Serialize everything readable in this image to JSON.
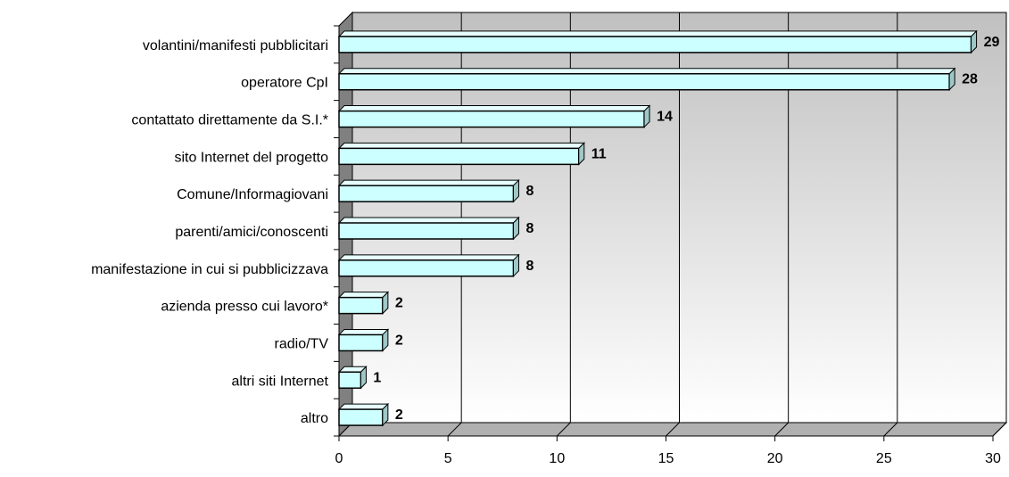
{
  "chart_data": {
    "type": "bar",
    "orientation": "horizontal",
    "categories": [
      "volantini/manifesti pubblicitari",
      "operatore CpI",
      "contattato direttamente da S.I.*",
      "sito Internet del progetto",
      "Comune/Informagiovani",
      "parenti/amici/conoscenti",
      "manifestazione in cui si pubblicizzava",
      "azienda presso cui lavoro*",
      "radio/TV",
      "altri siti Internet",
      "altro"
    ],
    "values": [
      29,
      28,
      14,
      11,
      8,
      8,
      8,
      2,
      2,
      1,
      2
    ],
    "xlim": [
      0,
      30
    ],
    "xticks": [
      0,
      5,
      10,
      15,
      20,
      25,
      30
    ],
    "grid": true,
    "colors": {
      "bar_fill": "#CCFFFF",
      "bar_side": "#9FC7C7",
      "bar_top": "#E6FFFF",
      "bar_stroke": "#000000",
      "wall_top": "#C0C0C0",
      "wall_bottom": "#FFFFFF",
      "side_wall": "#808080",
      "floor": "#B0B0B0"
    }
  }
}
